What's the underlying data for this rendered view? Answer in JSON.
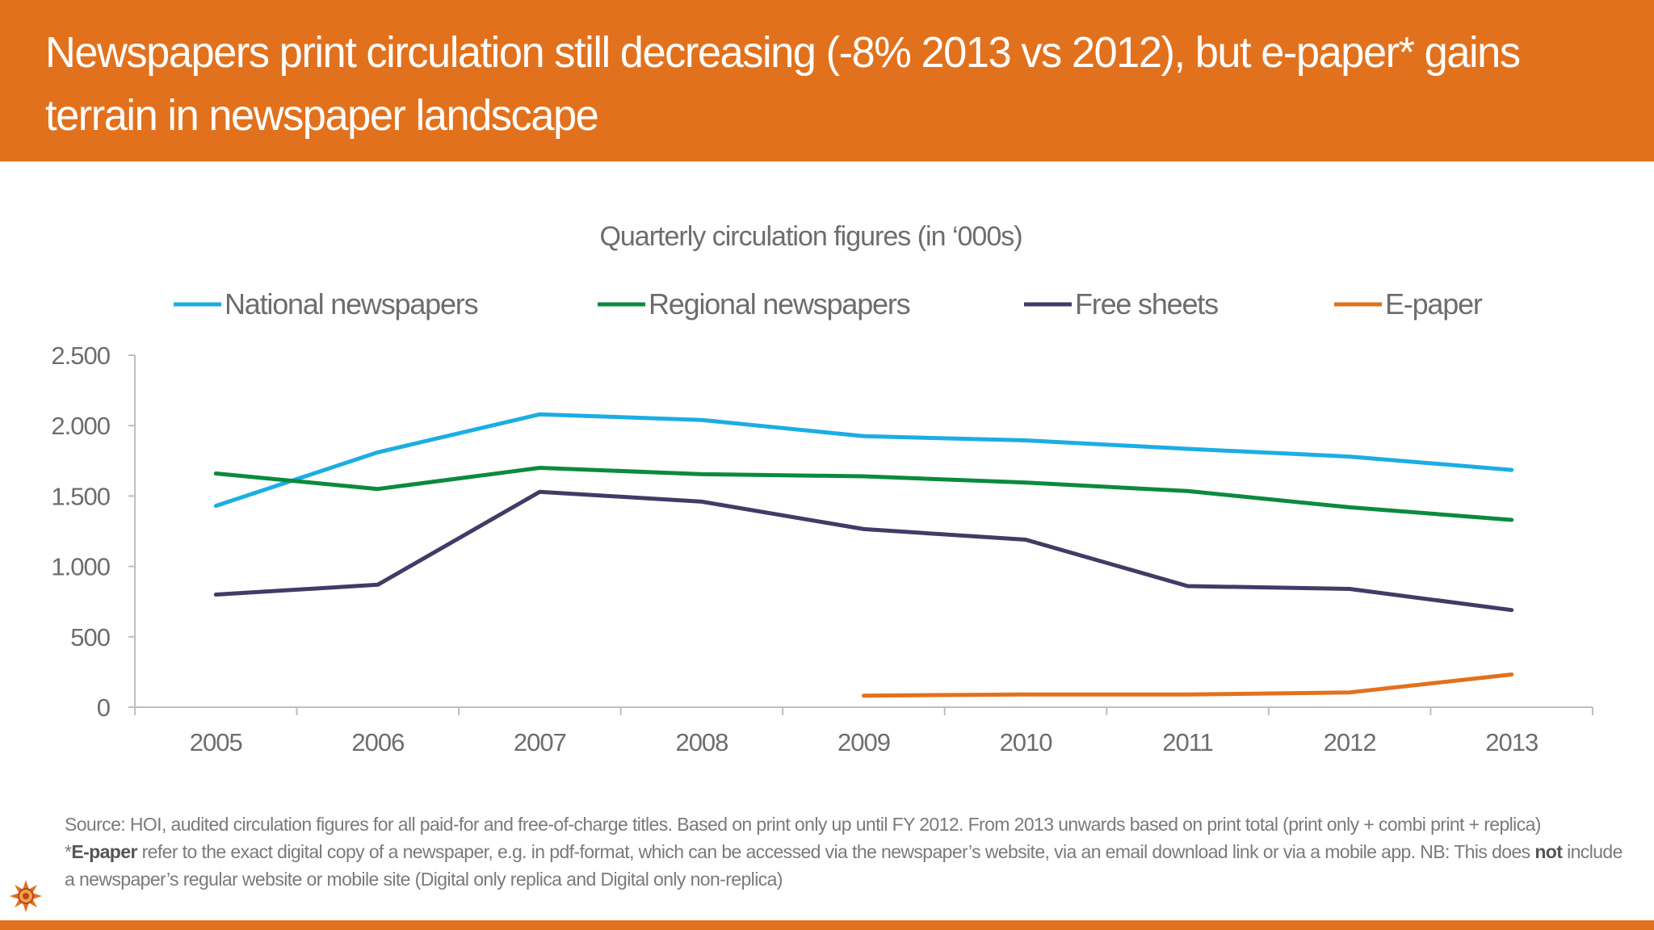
{
  "header": {
    "title": "Newspapers print circulation still decreasing (-8% 2013 vs 2012), but e-paper* gains terrain in newspaper landscape"
  },
  "chart_data": {
    "type": "line",
    "title": "Quarterly circulation figures (in ‘000s)",
    "categories": [
      "2005",
      "2006",
      "2007",
      "2008",
      "2009",
      "2010",
      "2011",
      "2012",
      "2013"
    ],
    "ylim": [
      0,
      2500
    ],
    "yticks": [
      0,
      500,
      1000,
      1500,
      2000,
      2500
    ],
    "ytick_labels": [
      "0",
      "500",
      "1.000",
      "1.500",
      "2.000",
      "2.500"
    ],
    "grid": false,
    "legend_position": "top",
    "series": [
      {
        "name": "National newspapers",
        "color": "#1CADE4",
        "values": [
          1430,
          1810,
          2080,
          2040,
          1925,
          1895,
          1835,
          1780,
          1685
        ]
      },
      {
        "name": "Regional newspapers",
        "color": "#0B8A3E",
        "values": [
          1660,
          1550,
          1700,
          1655,
          1640,
          1595,
          1535,
          1420,
          1330
        ]
      },
      {
        "name": "Free sheets",
        "color": "#3F3C66",
        "values": [
          800,
          870,
          1530,
          1460,
          1265,
          1190,
          860,
          840,
          690
        ]
      },
      {
        "name": "E-paper",
        "color": "#E2711D",
        "values": [
          null,
          null,
          null,
          null,
          82,
          90,
          90,
          105,
          232
        ]
      }
    ]
  },
  "footer": {
    "source": "Source: HOI, audited circulation figures for all paid-for and free-of-charge titles. Based on print only up until FY 2012. From 2013 unwards based on print total (print only + combi print + replica)",
    "note_prefix": "*",
    "note_term": "E-paper",
    "note_part1": " refer to the exact digital copy of a newspaper, e.g. in pdf-format, which can be accessed via the newspaper’s website, via an email download link or via a mobile app. NB: This does ",
    "note_emph": "not",
    "note_part2": " include a newspaper’s regular website or mobile site (Digital only replica and Digital only non-replica)"
  },
  "colors": {
    "accent": "#E2711D",
    "text": "#7a7a7a"
  },
  "icons": {
    "logo": "sun-emblem-logo"
  }
}
